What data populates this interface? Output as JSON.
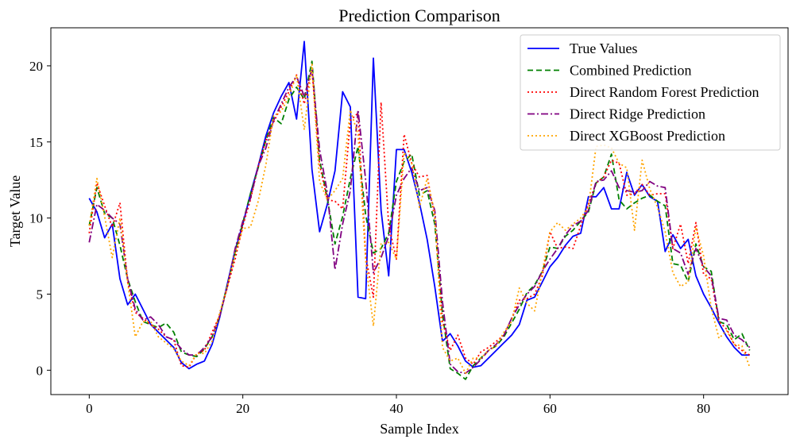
{
  "chart_data": {
    "type": "line",
    "title": "Prediction Comparison",
    "xlabel": "Sample Index",
    "ylabel": "Target Value",
    "xlim": [
      -5,
      91
    ],
    "ylim": [
      -1.6,
      22.5
    ],
    "xticks": [
      0,
      20,
      40,
      60,
      80
    ],
    "yticks": [
      0,
      5,
      10,
      15,
      20
    ],
    "x_tick_labels": [
      "0",
      "20",
      "40",
      "60",
      "80"
    ],
    "y_tick_labels": [
      "0",
      "5",
      "10",
      "15",
      "20"
    ],
    "legend_position": "top-right",
    "x": [
      0,
      1,
      2,
      3,
      4,
      5,
      6,
      7,
      8,
      9,
      10,
      11,
      12,
      13,
      14,
      15,
      16,
      17,
      18,
      19,
      20,
      21,
      22,
      23,
      24,
      25,
      26,
      27,
      28,
      29,
      30,
      31,
      32,
      33,
      34,
      35,
      36,
      37,
      38,
      39,
      40,
      41,
      42,
      43,
      44,
      45,
      46,
      47,
      48,
      49,
      50,
      51,
      52,
      53,
      54,
      55,
      56,
      57,
      58,
      59,
      60,
      61,
      62,
      63,
      64,
      65,
      66,
      67,
      68,
      69,
      70,
      71,
      72,
      73,
      74,
      75,
      76,
      77,
      78,
      79,
      80,
      81,
      82,
      83,
      84,
      85,
      86
    ],
    "series": [
      {
        "name": "True Values",
        "color": "#0000ff",
        "style": "solid",
        "values": [
          11.3,
          10.4,
          8.7,
          9.6,
          6.0,
          4.3,
          5.0,
          4.0,
          3.0,
          2.5,
          2.0,
          1.5,
          0.5,
          0.1,
          0.4,
          0.6,
          1.7,
          3.5,
          5.7,
          7.9,
          9.6,
          11.6,
          13.4,
          15.4,
          16.9,
          18.0,
          18.9,
          16.5,
          21.6,
          13.2,
          9.1,
          10.9,
          13.1,
          18.3,
          17.3,
          4.8,
          4.7,
          20.5,
          10.5,
          6.2,
          14.5,
          14.5,
          13.0,
          11.0,
          8.6,
          5.5,
          1.9,
          2.4,
          1.6,
          0.6,
          0.2,
          0.3,
          0.8,
          1.3,
          1.8,
          2.3,
          3.0,
          4.6,
          4.8,
          5.8,
          6.8,
          7.4,
          8.2,
          8.8,
          9.0,
          11.4,
          11.4,
          12.0,
          10.6,
          10.6,
          13.0,
          11.5,
          12.2,
          11.4,
          11.1,
          7.8,
          8.9,
          8.0,
          8.6,
          6.2,
          5.0,
          4.1,
          3.1,
          2.2,
          1.5,
          1.0,
          1.0
        ]
      },
      {
        "name": "Combined Prediction",
        "color": "#008000",
        "style": "dashed",
        "values": [
          9.5,
          12.0,
          10.3,
          10.0,
          8.2,
          6.0,
          4.5,
          3.2,
          3.0,
          2.8,
          3.1,
          2.5,
          1.2,
          1.0,
          0.9,
          1.4,
          2.2,
          3.6,
          5.6,
          7.7,
          9.7,
          11.6,
          13.3,
          15.1,
          16.6,
          16.2,
          17.8,
          18.6,
          17.8,
          20.3,
          13.8,
          11.3,
          8.3,
          10.1,
          12.6,
          14.7,
          10.2,
          7.7,
          8.0,
          9.0,
          12.4,
          13.7,
          14.2,
          11.5,
          11.8,
          9.6,
          3.7,
          0.1,
          -0.2,
          -0.6,
          0.3,
          0.8,
          1.3,
          1.6,
          2.2,
          3.1,
          4.0,
          5.1,
          5.6,
          6.5,
          8.1,
          8.0,
          8.8,
          9.2,
          9.8,
          10.4,
          12.3,
          12.7,
          14.2,
          11.2,
          10.6,
          11.0,
          11.3,
          11.5,
          11.1,
          10.8,
          7.0,
          6.9,
          5.8,
          8.3,
          6.8,
          6.5,
          3.2,
          3.0,
          2.0,
          2.4,
          1.3
        ]
      },
      {
        "name": "Direct Random Forest Prediction",
        "color": "#ff0000",
        "style": "dotted",
        "values": [
          9.0,
          12.3,
          10.8,
          9.4,
          11.0,
          5.8,
          3.8,
          3.4,
          3.0,
          2.7,
          2.2,
          2.0,
          0.3,
          0.2,
          1.1,
          1.3,
          2.5,
          3.6,
          5.5,
          7.3,
          9.5,
          11.2,
          13.4,
          15.1,
          16.3,
          17.3,
          18.3,
          19.4,
          17.5,
          19.8,
          13.5,
          11.2,
          11.1,
          10.6,
          16.4,
          16.9,
          7.5,
          4.8,
          17.6,
          9.5,
          7.3,
          15.5,
          13.6,
          12.7,
          12.8,
          10.0,
          3.2,
          1.3,
          2.3,
          0.8,
          0.4,
          1.2,
          1.5,
          1.9,
          2.3,
          3.4,
          4.6,
          4.7,
          5.0,
          6.2,
          9.1,
          8.0,
          8.1,
          8.0,
          9.5,
          10.9,
          12.3,
          12.7,
          13.8,
          13.6,
          11.5,
          11.6,
          12.2,
          11.5,
          11.6,
          11.6,
          8.0,
          9.6,
          7.0,
          9.7,
          6.3,
          6.0,
          3.2,
          2.7,
          1.7,
          1.3,
          1.0
        ]
      },
      {
        "name": "Direct Ridge Prediction",
        "color": "#800080",
        "style": "dashdot",
        "values": [
          8.4,
          10.9,
          10.5,
          10.0,
          9.6,
          6.0,
          4.0,
          3.3,
          3.5,
          3.0,
          2.2,
          2.0,
          1.4,
          1.0,
          1.0,
          1.5,
          2.2,
          3.6,
          5.5,
          8.0,
          9.8,
          11.3,
          13.4,
          14.6,
          16.4,
          17.5,
          18.6,
          19.3,
          18.0,
          19.8,
          14.5,
          11.7,
          6.6,
          9.6,
          11.8,
          17.1,
          12.5,
          6.4,
          7.4,
          8.8,
          11.5,
          12.6,
          13.3,
          11.8,
          12.0,
          10.5,
          4.5,
          0.4,
          -0.1,
          -0.2,
          0.2,
          0.7,
          1.3,
          1.7,
          2.3,
          3.4,
          4.3,
          5.0,
          5.5,
          6.5,
          7.3,
          8.0,
          8.9,
          9.5,
          9.8,
          10.5,
          12.4,
          12.5,
          13.1,
          12.0,
          11.8,
          11.7,
          11.8,
          12.4,
          12.1,
          12.0,
          8.0,
          7.7,
          6.3,
          8.0,
          6.8,
          6.2,
          3.4,
          3.3,
          2.3,
          2.0,
          1.5
        ]
      },
      {
        "name": "Direct XGBoost Prediction",
        "color": "#ffa500",
        "style": "dotted",
        "values": [
          9.5,
          12.6,
          10.1,
          7.4,
          10.0,
          5.8,
          2.2,
          3.2,
          3.2,
          2.2,
          1.8,
          1.4,
          0.6,
          0.3,
          1.1,
          1.1,
          1.9,
          3.8,
          5.5,
          7.7,
          9.3,
          9.4,
          11.1,
          13.5,
          16.7,
          17.0,
          18.0,
          19.4,
          15.8,
          20.1,
          12.4,
          11.2,
          11.8,
          12.6,
          17.1,
          15.5,
          7.2,
          2.9,
          8.3,
          8.4,
          7.3,
          14.3,
          13.6,
          10.7,
          12.6,
          10.3,
          1.5,
          0.6,
          0.8,
          -0.2,
          0.8,
          0.8,
          1.3,
          1.6,
          2.5,
          3.2,
          5.4,
          4.4,
          3.9,
          6.5,
          9.1,
          9.7,
          9.2,
          9.6,
          10.0,
          10.7,
          14.7,
          14.8,
          14.6,
          13.6,
          13.3,
          9.2,
          13.8,
          11.9,
          10.7,
          9.1,
          6.4,
          5.5,
          5.8,
          9.4,
          7.5,
          4.1,
          2.1,
          2.6,
          1.7,
          1.6,
          0.2
        ]
      }
    ]
  }
}
